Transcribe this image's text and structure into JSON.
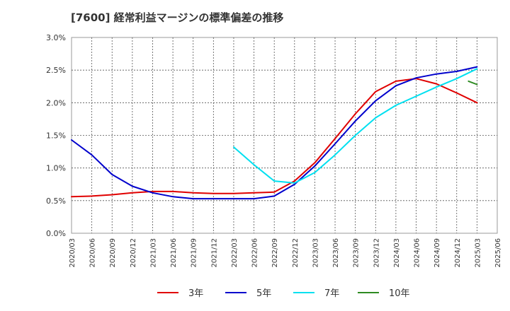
{
  "chart_data": {
    "type": "line",
    "title": "[7600]  経常利益マージンの標準偏差の推移",
    "ylim": [
      0.0,
      0.03
    ],
    "y_ticks": [
      "0.0%",
      "0.5%",
      "1.0%",
      "1.5%",
      "2.0%",
      "2.5%",
      "3.0%"
    ],
    "y_tick_values": [
      0,
      0.005,
      0.01,
      0.015,
      0.02,
      0.025,
      0.03
    ],
    "x_ticks": [
      "2020/03",
      "2020/06",
      "2020/09",
      "2020/12",
      "2021/03",
      "2021/06",
      "2021/09",
      "2021/12",
      "2022/03",
      "2022/06",
      "2022/09",
      "2022/12",
      "2023/03",
      "2023/06",
      "2023/09",
      "2023/12",
      "2024/03",
      "2024/06",
      "2024/09",
      "2024/12",
      "2025/03",
      "2025/06"
    ],
    "grid": true,
    "legend_position": "bottom",
    "series": [
      {
        "name": "3年",
        "color": "#e00000",
        "values": [
          0.0056,
          0.0057,
          0.0059,
          0.0062,
          0.0064,
          0.0064,
          0.0062,
          0.0061,
          0.0061,
          0.0062,
          0.0063,
          0.008,
          0.0108,
          0.0145,
          0.0183,
          0.0217,
          0.0233,
          0.0237,
          0.0229,
          0.0215,
          0.02,
          null
        ]
      },
      {
        "name": "5年",
        "color": "#0000cc",
        "values": [
          0.0143,
          0.012,
          0.009,
          0.0072,
          0.0062,
          0.0056,
          0.0053,
          0.0053,
          0.0053,
          0.0053,
          0.0057,
          0.0075,
          0.0103,
          0.0137,
          0.0172,
          0.0203,
          0.0226,
          0.0238,
          0.0244,
          0.0248,
          0.0255,
          null
        ]
      },
      {
        "name": "7年",
        "color": "#00e0f0",
        "values": [
          null,
          null,
          null,
          null,
          null,
          null,
          null,
          null,
          0.0132,
          0.0105,
          0.008,
          0.0077,
          0.0093,
          0.012,
          0.015,
          0.0177,
          0.0196,
          0.021,
          0.0224,
          0.0237,
          0.0252,
          null
        ]
      },
      {
        "name": "10年",
        "color": "#2e8b22",
        "values": [
          null,
          null,
          null,
          null,
          null,
          null,
          null,
          null,
          null,
          null,
          null,
          null,
          null,
          null,
          null,
          null,
          null,
          null,
          null,
          null,
          0.0228,
          null
        ]
      }
    ]
  }
}
